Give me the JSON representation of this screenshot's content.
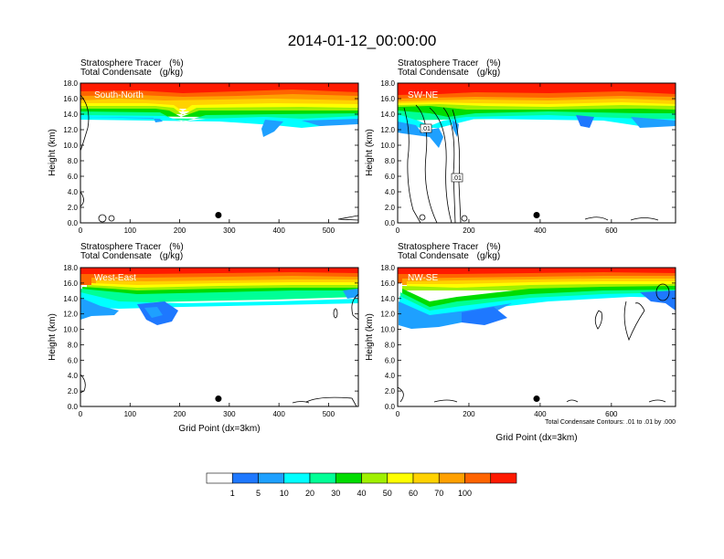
{
  "figure": {
    "title": "2014-01-12_00:00:00",
    "field_1": "Stratosphere Tracer",
    "field_1_units": "(%)",
    "field_2": "Total Condensate",
    "field_2_units": "(g/kg)",
    "ylabel": "Height (km)",
    "xlabel": "Grid Point (dx=3km)",
    "contour_note": "Total Condensate Contours: .01 to .01 by .000",
    "contour_labels": [
      ".01",
      ".01"
    ]
  },
  "colorbar": {
    "levels": [
      "1",
      "5",
      "10",
      "20",
      "30",
      "40",
      "50",
      "60",
      "70",
      "100"
    ],
    "colors": [
      "#ffffff",
      "#1e78ff",
      "#1ea0ff",
      "#00ffff",
      "#00ff96",
      "#00dc00",
      "#a0f000",
      "#ffff00",
      "#ffd200",
      "#ffa000",
      "#ff6400",
      "#ff1a00"
    ]
  },
  "chart_data": [
    {
      "type": "heatmap",
      "panel": "South-North",
      "label": "South-North",
      "xlim": [
        0,
        560
      ],
      "ylim": [
        0,
        18
      ],
      "xticks": [
        0,
        100,
        200,
        300,
        400,
        500
      ],
      "yticks": [
        0.0,
        2.0,
        4.0,
        6.0,
        8.0,
        10.0,
        12.0,
        14.0,
        16.0,
        18.0
      ],
      "marker": {
        "x": 278,
        "y": 1.0
      },
      "tracer_top_km": 18.0,
      "tracer_base_km": 13.5
    },
    {
      "type": "heatmap",
      "panel": "SW-NE",
      "label": "SW-NE",
      "xlim": [
        0,
        780
      ],
      "ylim": [
        0,
        18
      ],
      "xticks": [
        0,
        200,
        400,
        600
      ],
      "yticks": [
        0.0,
        2.0,
        4.0,
        6.0,
        8.0,
        10.0,
        12.0,
        14.0,
        16.0,
        18.0
      ],
      "marker": {
        "x": 390,
        "y": 1.0
      },
      "tracer_top_km": 18.0,
      "tracer_base_km": 12.5
    },
    {
      "type": "heatmap",
      "panel": "West-East",
      "label": "West-East",
      "xlim": [
        0,
        560
      ],
      "ylim": [
        0,
        18
      ],
      "xticks": [
        0,
        100,
        200,
        300,
        400,
        500
      ],
      "yticks": [
        0.0,
        2.0,
        4.0,
        6.0,
        8.0,
        10.0,
        12.0,
        14.0,
        16.0,
        18.0
      ],
      "marker": {
        "x": 278,
        "y": 1.0
      },
      "tracer_top_km": 18.0,
      "tracer_base_km": 10.5
    },
    {
      "type": "heatmap",
      "panel": "NW-SE",
      "label": "NW-SE",
      "xlim": [
        0,
        780
      ],
      "ylim": [
        0,
        18
      ],
      "xticks": [
        0,
        200,
        400,
        600
      ],
      "yticks": [
        0.0,
        2.0,
        4.0,
        6.0,
        8.0,
        10.0,
        12.0,
        14.0,
        16.0,
        18.0
      ],
      "marker": {
        "x": 390,
        "y": 1.0
      },
      "tracer_top_km": 18.0,
      "tracer_base_km": 10.5
    }
  ]
}
